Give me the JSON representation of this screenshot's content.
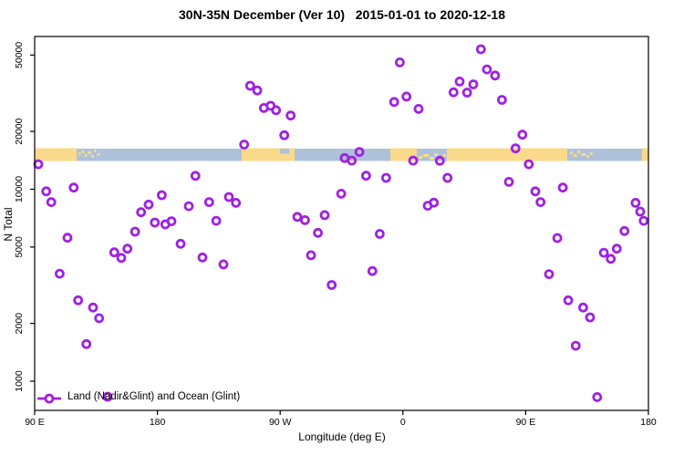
{
  "title": "30N-35N December (Ver 10)   2015-01-01 to 2020-12-18",
  "legend": {
    "label": "Land (Nadir&Glint) and Ocean (Glint)"
  },
  "colors": {
    "marker": "#A021E0",
    "ocean": "#AEC1DB",
    "land": "#FBD98B",
    "axis": "#000000",
    "background": "#FFFFFF"
  },
  "chart_data": {
    "type": "scatter",
    "title": "30N-35N December (Ver 10)   2015-01-01 to 2020-12-18",
    "xlabel": "Longitude (deg E)",
    "ylabel": "N Total",
    "x_axis": {
      "note": "longitude axis wraps: 90E to 180 spanning 450 degrees",
      "range_deg": [
        90,
        540
      ],
      "ticks": [
        {
          "deg": 90,
          "label": "90 E"
        },
        {
          "deg": 180,
          "label": "180"
        },
        {
          "deg": 270,
          "label": "90 W"
        },
        {
          "deg": 360,
          "label": "0"
        },
        {
          "deg": 450,
          "label": "90 E"
        },
        {
          "deg": 540,
          "label": "180"
        }
      ]
    },
    "y_axis": {
      "scale": "log",
      "range": [
        705,
        62500
      ],
      "ticks": [
        1000,
        2000,
        5000,
        10000,
        20000,
        50000
      ]
    },
    "legend_entry": "Land (Nadir&Glint) and Ocean (Glint)",
    "map_band": {
      "comment": "world-map strip at 30N-35N drawn across value band ~14000-16000",
      "value_range": [
        14000,
        16200
      ],
      "ocean_deg": [
        90,
        540
      ],
      "land_segments_deg": [
        [
          90,
          120.8
        ],
        [
          241.8,
          280.6
        ],
        [
          350.8,
          370.2
        ],
        [
          392.2,
          480.5
        ],
        [
          535.3,
          540
        ]
      ],
      "ocean_notches_deg": [
        [
          269.9,
          276.6
        ]
      ],
      "land_speckles": [
        [
          122.3,
          1.5,
          4
        ],
        [
          124.5,
          2,
          2
        ],
        [
          126.8,
          1.5,
          6
        ],
        [
          129,
          2.5,
          3
        ],
        [
          131.5,
          2,
          7
        ],
        [
          133.5,
          1.5,
          1
        ],
        [
          135.8,
          2,
          5
        ],
        [
          371.5,
          3,
          8
        ],
        [
          375,
          4,
          6
        ],
        [
          379.5,
          3,
          9
        ],
        [
          383,
          2.5,
          5
        ],
        [
          386.5,
          3,
          8
        ],
        [
          389.5,
          2,
          6
        ],
        [
          482.5,
          2,
          3
        ],
        [
          485,
          2.5,
          6
        ],
        [
          488,
          2,
          2
        ],
        [
          491,
          3,
          5
        ],
        [
          494.5,
          2,
          7
        ],
        [
          497,
          2,
          4
        ],
        [
          535.8,
          2,
          2
        ],
        [
          538,
          2,
          4
        ]
      ]
    },
    "points": [
      [
        92.7,
        13500
      ],
      [
        98.5,
        9750
      ],
      [
        102.2,
        8570
      ],
      [
        108.3,
        3630
      ],
      [
        114.1,
        5590
      ],
      [
        118.6,
        10200
      ],
      [
        121.9,
        2640
      ],
      [
        127.9,
        1560
      ],
      [
        132.8,
        2420
      ],
      [
        137.3,
        2130
      ],
      [
        143.5,
        830
      ],
      [
        148.4,
        4690
      ],
      [
        153.5,
        4390
      ],
      [
        158.0,
        4900
      ],
      [
        163.6,
        6010
      ],
      [
        168.0,
        7590
      ],
      [
        173.6,
        8320
      ],
      [
        178.1,
        6710
      ],
      [
        183.2,
        9310
      ],
      [
        185.8,
        6560
      ],
      [
        190.3,
        6810
      ],
      [
        197.0,
        5200
      ],
      [
        203.0,
        8160
      ],
      [
        207.9,
        11750
      ],
      [
        213.0,
        4410
      ],
      [
        217.9,
        8570
      ],
      [
        223.1,
        6850
      ],
      [
        228.4,
        4060
      ],
      [
        232.4,
        9110
      ],
      [
        237.6,
        8500
      ],
      [
        243.6,
        17100
      ],
      [
        248.0,
        34600
      ],
      [
        253.2,
        32700
      ],
      [
        258.0,
        26500
      ],
      [
        263.0,
        27200
      ],
      [
        267.0,
        25800
      ],
      [
        273.0,
        19100
      ],
      [
        277.7,
        24200
      ],
      [
        282.6,
        7180
      ],
      [
        288.2,
        6900
      ],
      [
        292.6,
        4530
      ],
      [
        297.7,
        5930
      ],
      [
        302.6,
        7330
      ],
      [
        307.8,
        3170
      ],
      [
        314.7,
        9480
      ],
      [
        317.3,
        14540
      ],
      [
        322.5,
        14100
      ],
      [
        328.1,
        15640
      ],
      [
        333.0,
        11760
      ],
      [
        337.6,
        3750
      ],
      [
        343.0,
        5850
      ],
      [
        347.7,
        11460
      ],
      [
        353.6,
        28500
      ],
      [
        357.7,
        45800
      ],
      [
        362.6,
        30400
      ],
      [
        367.5,
        14100
      ],
      [
        371.5,
        26200
      ],
      [
        378.2,
        8200
      ],
      [
        382.7,
        8510
      ],
      [
        387.1,
        14060
      ],
      [
        392.7,
        11460
      ],
      [
        397.1,
        32000
      ],
      [
        401.6,
        36400
      ],
      [
        407.1,
        31900
      ],
      [
        411.6,
        35200
      ],
      [
        417.2,
        53600
      ],
      [
        421.6,
        42100
      ],
      [
        427.6,
        39100
      ],
      [
        432.6,
        29200
      ],
      [
        437.7,
        10930
      ],
      [
        442.6,
        16320
      ],
      [
        447.6,
        19230
      ],
      [
        452.3,
        13500
      ],
      [
        457.1,
        9750
      ],
      [
        460.9,
        8570
      ],
      [
        467.1,
        3610
      ],
      [
        473.2,
        5570
      ],
      [
        477.2,
        10200
      ],
      [
        481.2,
        2640
      ],
      [
        486.7,
        1530
      ],
      [
        492.1,
        2420
      ],
      [
        497.2,
        2150
      ],
      [
        502.4,
        827
      ],
      [
        507.3,
        4670
      ],
      [
        512.4,
        4340
      ],
      [
        516.8,
        4900
      ],
      [
        522.4,
        6060
      ],
      [
        530.6,
        8500
      ],
      [
        534.0,
        7650
      ],
      [
        536.5,
        6850
      ]
    ]
  }
}
